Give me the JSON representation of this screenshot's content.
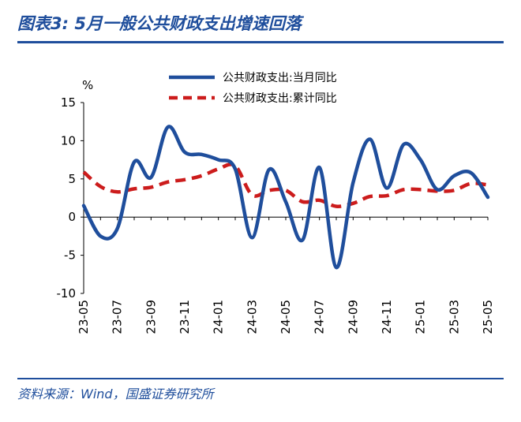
{
  "figure": {
    "title": "图表3:  5月一般公共财政支出增速回落",
    "source": "资料来源：Wind，国盛证券研究所"
  },
  "chart_data": {
    "type": "line",
    "y_unit": "%",
    "ylim": [
      -10,
      15
    ],
    "yticks": [
      15,
      10,
      5,
      0,
      -5,
      -10
    ],
    "x_tick_labels": [
      "23-05",
      "23-07",
      "23-09",
      "23-11",
      "24-01",
      "24-03",
      "24-05",
      "24-07",
      "24-09",
      "24-11",
      "25-01",
      "25-03",
      "25-05"
    ],
    "x": [
      "23-05",
      "23-06",
      "23-07",
      "23-08",
      "23-09",
      "23-10",
      "23-11",
      "23-12",
      "24-01",
      "24-02",
      "24-03",
      "24-04",
      "24-05",
      "24-06",
      "24-07",
      "24-08",
      "24-09",
      "24-10",
      "24-11",
      "24-12",
      "25-01",
      "25-02",
      "25-03",
      "25-04",
      "25-05"
    ],
    "series": [
      {
        "name": "公共财政支出:当月同比",
        "color": "#1f4e9c",
        "style": "solid",
        "values": [
          1.5,
          -2.5,
          -1.5,
          7.2,
          5.2,
          11.8,
          8.5,
          8.2,
          7.5,
          6.3,
          -2.7,
          6.2,
          2.0,
          -3.0,
          6.5,
          -6.6,
          4.5,
          10.2,
          3.8,
          9.5,
          7.5,
          3.6,
          5.4,
          5.8,
          2.6
        ]
      },
      {
        "name": "公共财政支出:累计同比",
        "color": "#cc1c1c",
        "style": "dashed",
        "values": [
          5.9,
          4.0,
          3.3,
          3.7,
          3.9,
          4.6,
          4.9,
          5.4,
          6.3,
          6.7,
          2.9,
          3.5,
          3.5,
          2.0,
          2.2,
          1.4,
          1.8,
          2.7,
          2.8,
          3.6,
          3.6,
          3.4,
          3.5,
          4.4,
          4.2
        ]
      }
    ],
    "legend": "top-center",
    "grid": false
  }
}
